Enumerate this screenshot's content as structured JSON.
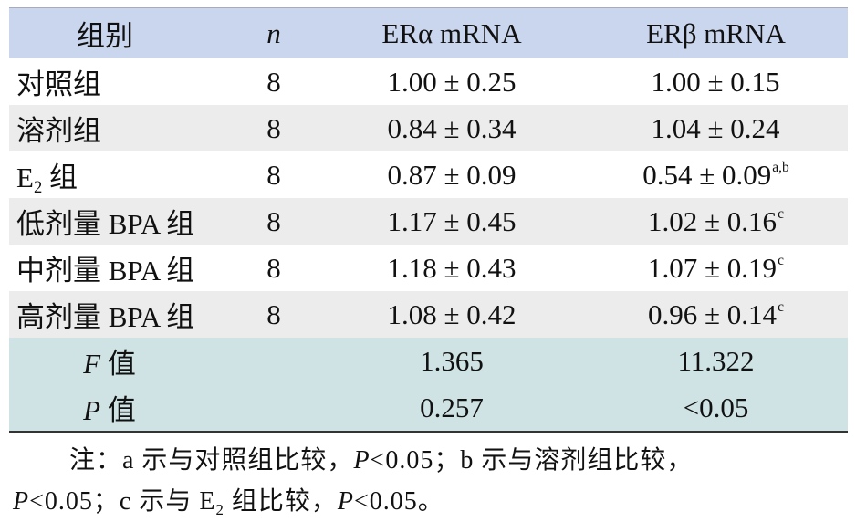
{
  "header": {
    "group": "组别",
    "n": "n",
    "era": "ERα  mRNA",
    "erb": "ERβ  mRNA"
  },
  "rows": [
    {
      "group": "对照组",
      "n": "8",
      "era": "1.00 ± 0.25",
      "erb": "1.00 ± 0.15",
      "erb_sup": ""
    },
    {
      "group": "溶剂组",
      "n": "8",
      "era": "0.84 ± 0.34",
      "erb": "1.04  ± 0.24",
      "erb_sup": ""
    },
    {
      "group_prefix": "E",
      "group_sub": "2",
      "group_suffix": " 组",
      "n": "8",
      "era": "0.87 ± 0.09",
      "erb": "0.54 ± 0.09",
      "erb_sup": "a,b"
    },
    {
      "group": "低剂量 BPA 组",
      "n": "8",
      "era": "1.17 ± 0.45",
      "erb": "1.02 ± 0.16",
      "erb_sup": "c"
    },
    {
      "group": "中剂量 BPA 组",
      "n": "8",
      "era": "1.18 ± 0.43",
      "erb": "1.07 ± 0.19",
      "erb_sup": "c"
    },
    {
      "group": "高剂量 BPA 组",
      "n": "8",
      "era": "1.08 ± 0.42",
      "erb": "0.96 ± 0.14",
      "erb_sup": "c"
    }
  ],
  "stats": [
    {
      "label_it": "F",
      "label": " 值",
      "era": "1.365",
      "erb": "11.322"
    },
    {
      "label_it": "P",
      "label": " 值",
      "era": "0.257",
      "erb": "<0.05"
    }
  ],
  "note": {
    "line1_a": "注：a 示与对照组比较，",
    "line1_p": "P",
    "line1_b": "<0.05；b 示与溶剂组比较，",
    "line2_p1": "P",
    "line2_a": "<0.05；c 示与 E",
    "line2_sub": "2",
    "line2_b": " 组比较，",
    "line2_p2": "P",
    "line2_c": "<0.05。"
  }
}
